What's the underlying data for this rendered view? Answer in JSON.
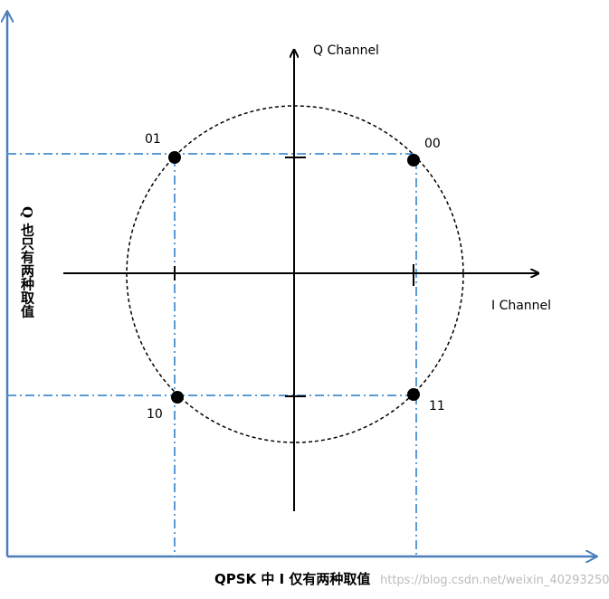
{
  "axes": {
    "q_label": "Q Channel",
    "i_label": "I Channel"
  },
  "points": [
    {
      "label": "01"
    },
    {
      "label": "00"
    },
    {
      "label": "10"
    },
    {
      "label": "11"
    }
  ],
  "side_note": "Q 也只有两种取值",
  "bottom_note": "QPSK 中 I 仅有两种取值",
  "watermark": "https://blog.csdn.net/weixin_40293250"
}
